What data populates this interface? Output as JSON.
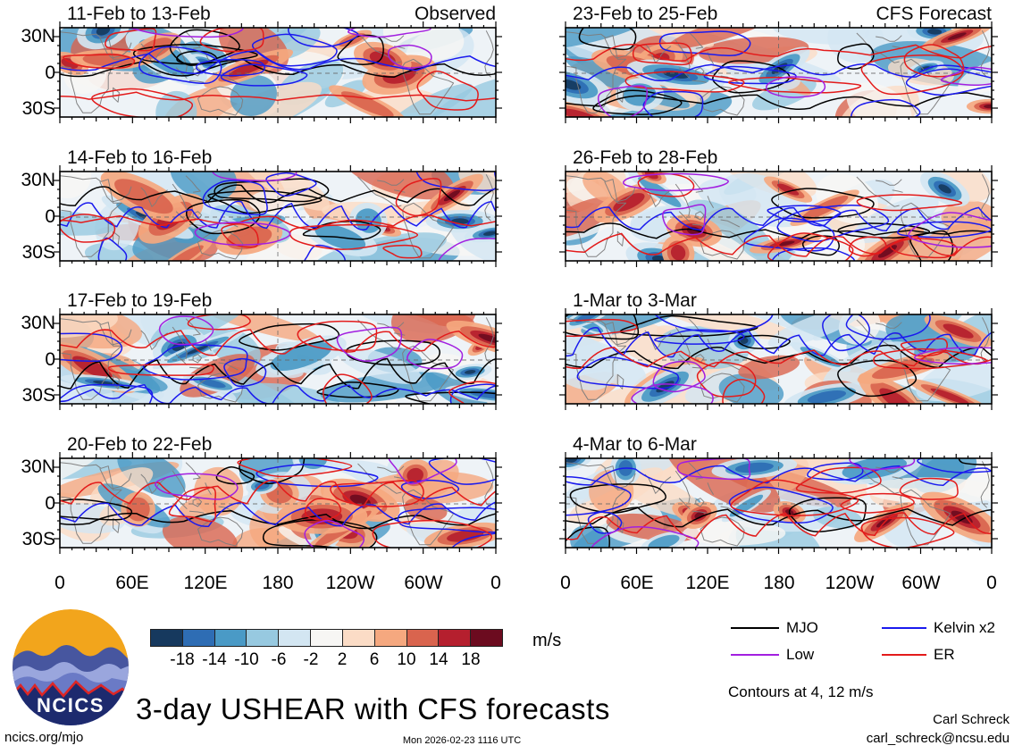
{
  "figure": {
    "panels": [
      {
        "title": "11-Feb to 13-Feb",
        "annotation": "Observed",
        "column": "left",
        "row": 0
      },
      {
        "title": "14-Feb to 16-Feb",
        "annotation": "",
        "column": "left",
        "row": 1
      },
      {
        "title": "17-Feb to 19-Feb",
        "annotation": "",
        "column": "left",
        "row": 2
      },
      {
        "title": "20-Feb to 22-Feb",
        "annotation": "",
        "column": "left",
        "row": 3
      },
      {
        "title": "23-Feb to 25-Feb",
        "annotation": "CFS Forecast",
        "column": "right",
        "row": 0
      },
      {
        "title": "26-Feb to 28-Feb",
        "annotation": "",
        "column": "right",
        "row": 1
      },
      {
        "title": "1-Mar to 3-Mar",
        "annotation": "",
        "column": "right",
        "row": 2
      },
      {
        "title": "4-Mar to 6-Mar",
        "annotation": "",
        "column": "right",
        "row": 3
      }
    ],
    "y_ticks": [
      "30N",
      "0",
      "30S"
    ],
    "x_ticks": [
      "0",
      "60E",
      "120E",
      "180",
      "120W",
      "60W",
      "0"
    ]
  },
  "colorbar": {
    "colors": [
      "#16395e",
      "#2e6db4",
      "#4a9ac6",
      "#97c9e0",
      "#d3e6f2",
      "#f7f6f4",
      "#fbdcc6",
      "#f5a87f",
      "#d9644e",
      "#b51f2e",
      "#6c0b1f"
    ],
    "tick_labels": [
      "-18",
      "-14",
      "-10",
      "-6",
      "-2",
      "2",
      "6",
      "10",
      "14",
      "18"
    ],
    "units": "m/s"
  },
  "legend": {
    "items": [
      {
        "label": "MJO",
        "color": "#000000"
      },
      {
        "label": "Kelvin x2",
        "color": "#1a1aee"
      },
      {
        "label": "Low",
        "color": "#a21fe0"
      },
      {
        "label": "ER",
        "color": "#e31b1b"
      }
    ],
    "note": "Contours at 4, 12 m/s"
  },
  "footer": {
    "title": "3-day USHEAR with CFS forecasts",
    "site": "ncics.org/mjo",
    "timestamp": "Mon 2026-02-23 1116 UTC",
    "author": "Carl Schreck",
    "email": "carl_schreck@ncsu.edu",
    "logo": {
      "text": "NCICS",
      "sky": "#f2a51c",
      "navy": "#1d2a6e",
      "ridge_light": "#9aa6dd",
      "ridge_mid": "#6a7ac6",
      "ridge_dark": "#47569f",
      "line": "#dd2626"
    }
  },
  "chart_data": {
    "type": "heatmap",
    "title": "3-day USHEAR with CFS forecasts",
    "description": "Eight longitude-latitude shaded contour maps of 3-day mean zonal wind shear anomalies (m/s), tropics 30S-30N, longitudes 0-360. Left column observed periods, right column CFS forecast periods. Wave-filtered contour overlays at 4 and 12 m/s.",
    "panels": [
      {
        "title": "11-Feb to 13-Feb",
        "type_label": "Observed"
      },
      {
        "title": "14-Feb to 16-Feb",
        "type_label": "Observed"
      },
      {
        "title": "17-Feb to 19-Feb",
        "type_label": "Observed"
      },
      {
        "title": "20-Feb to 22-Feb",
        "type_label": "Observed"
      },
      {
        "title": "23-Feb to 25-Feb",
        "type_label": "CFS Forecast"
      },
      {
        "title": "26-Feb to 28-Feb",
        "type_label": "CFS Forecast"
      },
      {
        "title": "1-Mar to 3-Mar",
        "type_label": "CFS Forecast"
      },
      {
        "title": "4-Mar to 6-Mar",
        "type_label": "CFS Forecast"
      }
    ],
    "x_tick_labels": [
      "0",
      "60E",
      "120E",
      "180",
      "120W",
      "60W",
      "0"
    ],
    "y_tick_labels": [
      "30N",
      "0",
      "30S"
    ],
    "colorbar_levels": [
      -18,
      -14,
      -10,
      -6,
      -2,
      2,
      6,
      10,
      14,
      18
    ],
    "colorbar_units": "m/s",
    "legend_entries": [
      "MJO",
      "Kelvin x2",
      "Low",
      "ER"
    ],
    "contour_levels_note": "Contours at 4, 12 m/s",
    "grid": false,
    "legend_position": "bottom-right"
  }
}
